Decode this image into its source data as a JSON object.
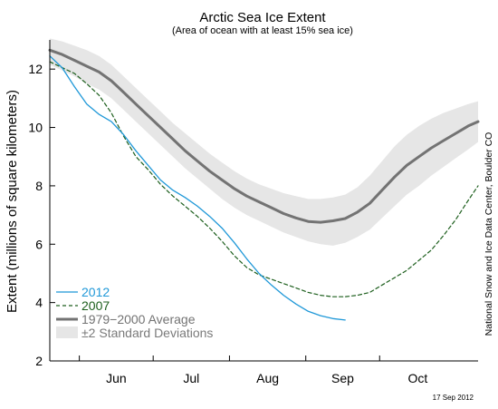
{
  "chart_data": {
    "type": "line",
    "title": "Arctic Sea Ice Extent",
    "subtitle": "(Area of ocean with at least 15% sea ice)",
    "xlabel": "",
    "ylabel": "Extent (millions of square kilometers)",
    "ylim": [
      2,
      13
    ],
    "yticks": [
      2,
      4,
      6,
      8,
      10,
      12
    ],
    "x_unit": "day of year",
    "xlim": [
      140,
      314
    ],
    "month_ticks": [
      152,
      182,
      213,
      244,
      274
    ],
    "month_labels": [
      {
        "label": "Jun",
        "x": 167
      },
      {
        "label": "Jul",
        "x": 197.5
      },
      {
        "label": "Aug",
        "x": 228.5
      },
      {
        "label": "Sep",
        "x": 259
      },
      {
        "label": "Oct",
        "x": 289.5
      }
    ],
    "grid": false,
    "legend_position": "bottom-left",
    "source_note": "National Snow and Ice Data Center, Boulder CO",
    "date_stamp": "17 Sep 2012",
    "series": [
      {
        "name": "2012",
        "style": "solid",
        "color": "#1f98d8",
        "x": [
          140,
          145,
          150,
          155,
          160,
          165,
          170,
          175,
          180,
          185,
          190,
          195,
          200,
          205,
          210,
          215,
          220,
          225,
          230,
          235,
          240,
          245,
          250,
          255,
          260
        ],
        "y": [
          12.45,
          12.05,
          11.4,
          10.8,
          10.45,
          10.2,
          9.75,
          9.2,
          8.7,
          8.2,
          7.85,
          7.6,
          7.3,
          6.95,
          6.55,
          6.05,
          5.5,
          5.0,
          4.6,
          4.25,
          3.95,
          3.7,
          3.55,
          3.45,
          3.4
        ]
      },
      {
        "name": "2007",
        "style": "dashed",
        "color": "#1c5e1c",
        "x": [
          140,
          145,
          150,
          155,
          160,
          165,
          170,
          175,
          180,
          185,
          190,
          195,
          200,
          205,
          210,
          215,
          220,
          225,
          230,
          235,
          240,
          245,
          250,
          255,
          260,
          265,
          270,
          275,
          280,
          285,
          290,
          295,
          300,
          305,
          310,
          314
        ],
        "y": [
          12.25,
          12.05,
          11.85,
          11.5,
          11.1,
          10.5,
          9.7,
          9.0,
          8.55,
          8.05,
          7.65,
          7.3,
          6.95,
          6.55,
          6.1,
          5.6,
          5.2,
          4.95,
          4.8,
          4.65,
          4.5,
          4.35,
          4.25,
          4.2,
          4.2,
          4.25,
          4.35,
          4.6,
          4.85,
          5.1,
          5.45,
          5.8,
          6.3,
          6.85,
          7.5,
          8.0
        ]
      },
      {
        "name": "1979−2000 Average",
        "style": "solid",
        "color": "#737373",
        "x": [
          140,
          145,
          150,
          155,
          160,
          165,
          170,
          175,
          180,
          185,
          190,
          195,
          200,
          205,
          210,
          215,
          220,
          225,
          230,
          235,
          240,
          245,
          250,
          255,
          260,
          265,
          270,
          275,
          280,
          285,
          290,
          295,
          300,
          305,
          310,
          314
        ],
        "y": [
          12.65,
          12.5,
          12.3,
          12.1,
          11.9,
          11.6,
          11.2,
          10.8,
          10.4,
          10.0,
          9.6,
          9.2,
          8.85,
          8.5,
          8.2,
          7.9,
          7.65,
          7.45,
          7.25,
          7.05,
          6.9,
          6.78,
          6.75,
          6.8,
          6.88,
          7.1,
          7.4,
          7.85,
          8.3,
          8.7,
          9.0,
          9.3,
          9.55,
          9.8,
          10.05,
          10.2
        ]
      }
    ],
    "band": {
      "name": "±2 Standard Deviations",
      "color": "#e6e6e6",
      "x": [
        140,
        145,
        150,
        155,
        160,
        165,
        170,
        175,
        180,
        185,
        190,
        195,
        200,
        205,
        210,
        215,
        220,
        225,
        230,
        235,
        240,
        245,
        250,
        255,
        260,
        265,
        270,
        275,
        280,
        285,
        290,
        295,
        300,
        305,
        310,
        314
      ],
      "upper": [
        13.05,
        12.95,
        12.8,
        12.65,
        12.45,
        12.15,
        11.75,
        11.35,
        10.95,
        10.55,
        10.15,
        9.8,
        9.45,
        9.1,
        8.8,
        8.5,
        8.25,
        8.05,
        7.9,
        7.75,
        7.65,
        7.55,
        7.55,
        7.6,
        7.7,
        7.95,
        8.35,
        8.85,
        9.35,
        9.75,
        10.05,
        10.3,
        10.5,
        10.65,
        10.8,
        10.9
      ],
      "lower": [
        12.15,
        11.95,
        11.75,
        11.5,
        11.3,
        11.0,
        10.6,
        10.2,
        9.8,
        9.4,
        9.0,
        8.6,
        8.25,
        7.9,
        7.55,
        7.25,
        7.0,
        6.8,
        6.6,
        6.4,
        6.25,
        6.1,
        6.0,
        5.95,
        6.05,
        6.25,
        6.5,
        6.9,
        7.3,
        7.7,
        8.0,
        8.35,
        8.65,
        8.95,
        9.25,
        9.5
      ]
    }
  }
}
